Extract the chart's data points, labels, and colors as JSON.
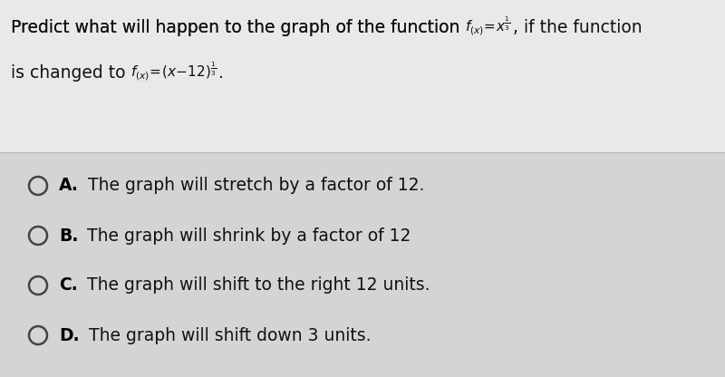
{
  "bg_color_top": "#e8e8e8",
  "bg_color_bottom": "#d0d0d0",
  "divider_color": "#b0b0b0",
  "text_color": "#111111",
  "bold_color": "#000000",
  "question_fontsize": 13.5,
  "option_fontsize": 13.5,
  "options": [
    {
      "letter": "A",
      "text": " The graph will stretch by a factor of 12."
    },
    {
      "letter": "B",
      "text": " The graph will shrink by a factor of 12"
    },
    {
      "letter": "C",
      "text": " The graph will shift to the right 12 units."
    },
    {
      "letter": "D",
      "text": " The graph will shift down 3 units."
    }
  ]
}
